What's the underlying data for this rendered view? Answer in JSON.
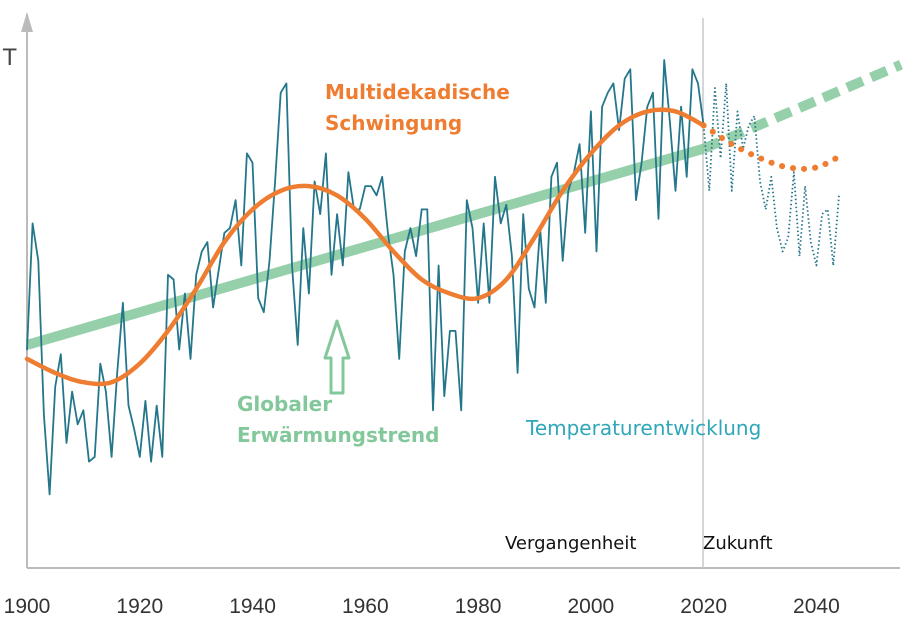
{
  "chart_data": {
    "type": "line",
    "title": "",
    "xlabel": "",
    "ylabel": "T",
    "xlim": [
      1900,
      2055
    ],
    "ylim": [
      0,
      100
    ],
    "x_ticks": [
      1900,
      1920,
      1940,
      1960,
      1980,
      2000,
      2020,
      2040
    ],
    "present_year": 2020,
    "grid": false,
    "series": [
      {
        "name": "Temperaturentwicklung",
        "color": "#24768A",
        "style": "solid",
        "x": [
          1900,
          1901,
          1902,
          1903,
          1904,
          1905,
          1906,
          1907,
          1908,
          1909,
          1910,
          1911,
          1912,
          1913,
          1914,
          1915,
          1916,
          1917,
          1918,
          1919,
          1920,
          1921,
          1922,
          1923,
          1924,
          1925,
          1926,
          1927,
          1928,
          1929,
          1930,
          1931,
          1932,
          1933,
          1934,
          1935,
          1936,
          1937,
          1938,
          1939,
          1940,
          1941,
          1942,
          1943,
          1944,
          1945,
          1946,
          1947,
          1948,
          1949,
          1950,
          1951,
          1952,
          1953,
          1954,
          1955,
          1956,
          1957,
          1958,
          1959,
          1960,
          1961,
          1962,
          1963,
          1964,
          1965,
          1966,
          1967,
          1968,
          1969,
          1970,
          1971,
          1972,
          1973,
          1974,
          1975,
          1976,
          1977,
          1978,
          1979,
          1980,
          1981,
          1982,
          1983,
          1984,
          1985,
          1986,
          1987,
          1988,
          1989,
          1990,
          1991,
          1992,
          1993,
          1994,
          1995,
          1996,
          1997,
          1998,
          1999,
          2000,
          2001,
          2002,
          2003,
          2004,
          2005,
          2006,
          2007,
          2008,
          2009,
          2010,
          2011,
          2012,
          2013,
          2014,
          2015,
          2016,
          2017,
          2018,
          2019,
          2020
        ],
        "y": [
          38,
          65,
          57,
          24,
          7,
          30,
          37,
          18,
          29,
          22,
          25,
          14,
          15,
          35,
          29,
          15,
          33,
          48,
          26,
          21,
          15,
          27,
          14,
          26,
          15,
          54,
          53,
          38,
          50,
          36,
          54,
          59,
          61,
          47,
          55,
          63,
          64,
          70,
          56,
          80,
          78,
          49,
          46,
          57,
          74,
          93,
          95,
          56,
          39,
          64,
          50,
          74,
          67,
          80,
          54,
          67,
          56,
          76,
          68,
          68,
          73,
          73,
          71,
          75,
          63,
          54,
          36,
          59,
          64,
          58,
          68,
          68,
          25,
          56,
          28,
          42,
          42,
          25,
          70,
          64,
          48,
          65,
          48,
          75,
          65,
          69,
          58,
          33,
          67,
          51,
          47,
          64,
          48,
          75,
          78,
          57,
          72,
          76,
          82,
          63,
          89,
          59,
          90,
          93,
          95,
          85,
          96,
          98,
          70,
          78,
          90,
          93,
          66,
          100,
          87,
          72,
          90,
          75,
          98,
          95,
          86
        ],
        "note": "Vergangenheit"
      },
      {
        "name": "Temperaturentwicklung (Zukunft)",
        "color": "#24768A",
        "style": "dotted",
        "x": [
          2020,
          2021,
          2022,
          2023,
          2024,
          2025,
          2026,
          2027,
          2028,
          2029,
          2030,
          2031,
          2032,
          2033,
          2034,
          2035,
          2036,
          2037,
          2038,
          2039,
          2040,
          2041,
          2042,
          2043,
          2044
        ],
        "y": [
          86,
          72,
          94,
          79,
          95,
          72,
          89,
          81,
          86,
          88,
          74,
          68,
          75,
          64,
          59,
          62,
          76,
          58,
          73,
          61,
          56,
          67,
          68,
          56,
          71
        ],
        "note": "Zukunft"
      },
      {
        "name": "Multidekadische Schwingung",
        "color": "#EE7D31",
        "style": "solid",
        "x": [
          1900,
          1905,
          1910,
          1915,
          1920,
          1925,
          1930,
          1935,
          1940,
          1945,
          1950,
          1955,
          1960,
          1965,
          1970,
          1975,
          1980,
          1985,
          1990,
          1995,
          2000,
          2005,
          2010,
          2015,
          2020
        ],
        "y": [
          36,
          33,
          31,
          31,
          35,
          42,
          51,
          61,
          68,
          72,
          73,
          71,
          66,
          59,
          53,
          50,
          49,
          53,
          62,
          72,
          80,
          86,
          89,
          89,
          86
        ],
        "note": "Vergangenheit"
      },
      {
        "name": "Multidekadische Schwingung (Zukunft)",
        "color": "#EE7D31",
        "style": "dotted",
        "x": [
          2020,
          2025,
          2030,
          2035,
          2040,
          2045
        ],
        "y": [
          86,
          82,
          79,
          77,
          77,
          80
        ],
        "note": "Zukunft"
      },
      {
        "name": "Globaler Erwärmungstrend",
        "color": "#83C89B",
        "style": "solid",
        "x": [
          1900,
          2020
        ],
        "y": [
          39,
          81
        ],
        "note": "Vergangenheit"
      },
      {
        "name": "Globaler Erwärmungstrend (Zukunft)",
        "color": "#83C89B",
        "style": "dashed",
        "x": [
          2020,
          2055
        ],
        "y": [
          81,
          99
        ],
        "note": "Zukunft"
      }
    ],
    "annotations": {
      "oscillation_line1": "Multidekadische",
      "oscillation_line2": "Schwingung",
      "trend_line1": "Globaler",
      "trend_line2": "Erwärmungstrend",
      "temperature": "Temperaturentwicklung",
      "past": "Vergangenheit",
      "future": "Zukunft"
    },
    "colors": {
      "temperature": "#24768A",
      "oscillation": "#EE7D31",
      "trend": "#83C89B",
      "temperature_label": "#2FA7B8",
      "axis": "#BBBBBB"
    }
  }
}
